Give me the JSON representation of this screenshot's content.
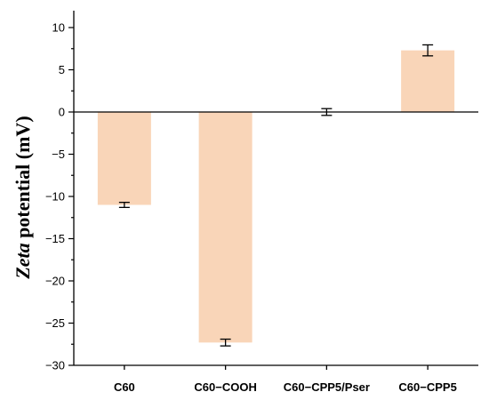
{
  "chart_data": {
    "type": "bar",
    "categories": [
      "C60",
      "C60−COOH",
      "C60−CPP5/Pser",
      "C60−CPP5"
    ],
    "values": [
      -11.0,
      -27.3,
      0.0,
      7.3
    ],
    "errors": [
      0.3,
      0.4,
      0.4,
      0.65
    ],
    "ylabel_italic": "Zeta",
    "ylabel_rest": " potential (mV)",
    "ylim": [
      -30,
      12
    ],
    "yticks": [
      -30,
      -25,
      -20,
      -15,
      -10,
      -5,
      0,
      5,
      10
    ],
    "bar_color": "#f9d5b8",
    "error_color": "#000000",
    "grid": false,
    "legend": "none"
  }
}
